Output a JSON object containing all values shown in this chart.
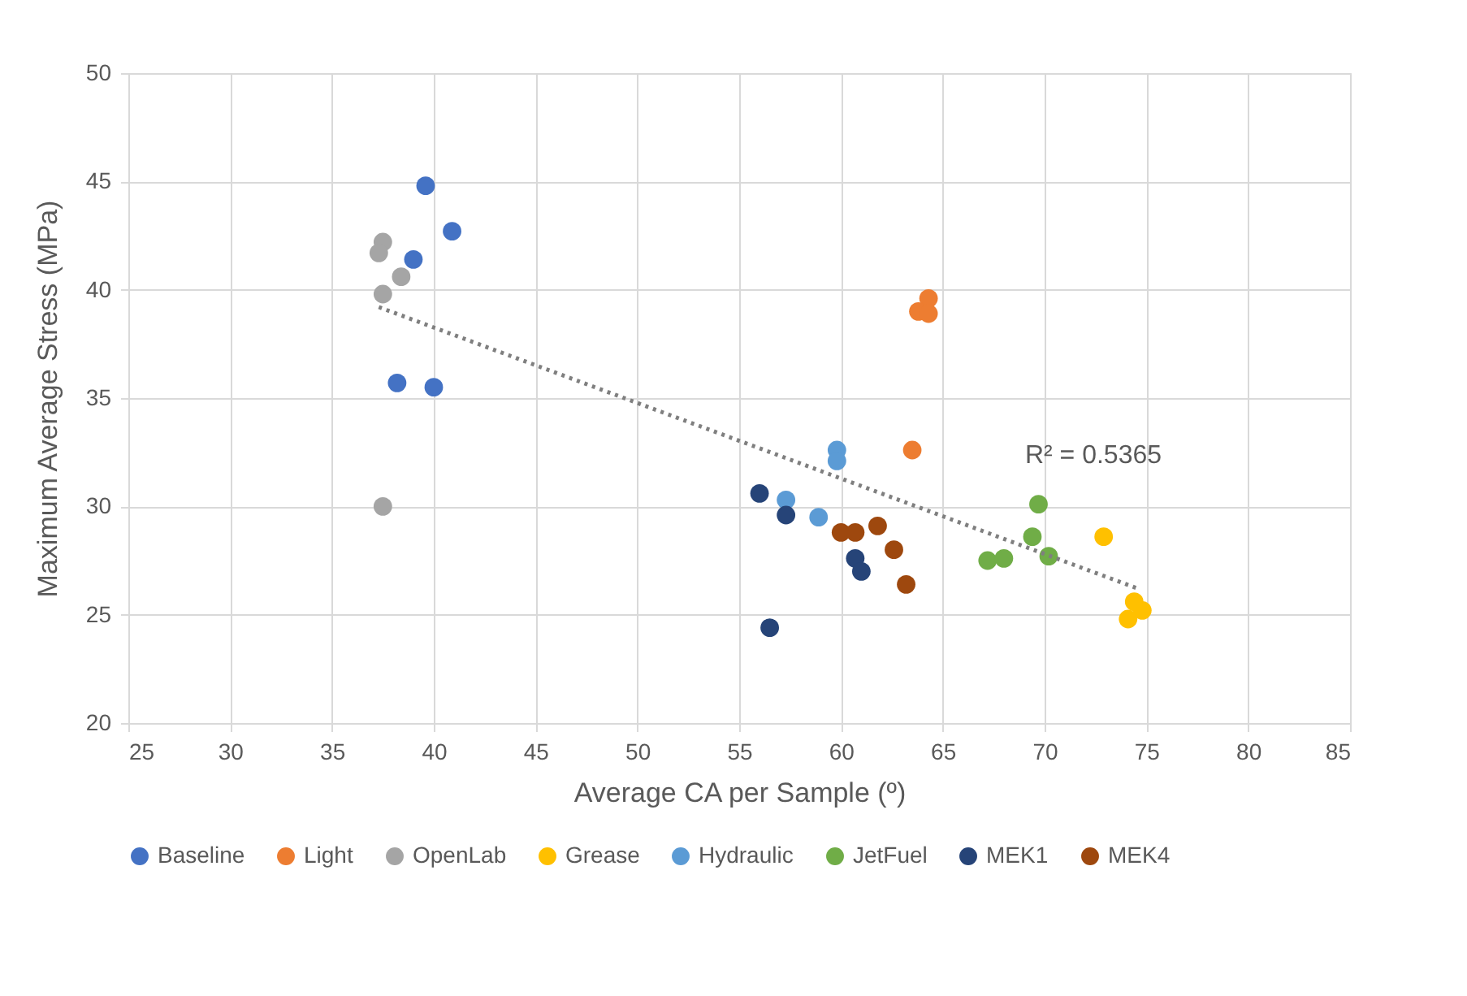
{
  "chart_data": {
    "type": "scatter",
    "xlabel": "Average CA per Sample (º)",
    "ylabel": "Maximum Average Stress (MPa)",
    "xlim": [
      25,
      85
    ],
    "xticks": [
      25,
      30,
      35,
      40,
      45,
      50,
      55,
      60,
      65,
      70,
      75,
      80,
      85
    ],
    "ylim": [
      20,
      50
    ],
    "yticks": [
      20,
      25,
      30,
      35,
      40,
      45,
      50
    ],
    "grid": true,
    "legend": "bottom",
    "marker": "circle",
    "series": [
      {
        "name": "Baseline",
        "color": "#4472c4",
        "x": [
          39.6,
          40.9,
          39.0,
          38.2,
          40.0
        ],
        "values": [
          44.8,
          42.7,
          41.4,
          35.7,
          35.5
        ]
      },
      {
        "name": "Light",
        "color": "#ed7d31",
        "x": [
          64.3,
          63.8,
          64.3,
          63.5
        ],
        "values": [
          39.6,
          39.0,
          38.9,
          32.6
        ]
      },
      {
        "name": "OpenLab",
        "color": "#a5a5a5",
        "x": [
          37.5,
          37.3,
          38.4,
          37.5,
          37.5
        ],
        "values": [
          42.2,
          41.7,
          40.6,
          39.8,
          30.0
        ]
      },
      {
        "name": "Grease",
        "color": "#ffc000",
        "x": [
          72.9,
          74.4,
          74.8,
          74.1
        ],
        "values": [
          28.6,
          25.6,
          25.2,
          24.8
        ]
      },
      {
        "name": "Hydraulic",
        "color": "#5b9bd5",
        "x": [
          59.8,
          59.8,
          57.3,
          58.9
        ],
        "values": [
          32.6,
          32.1,
          30.3,
          29.5
        ]
      },
      {
        "name": "JetFuel",
        "color": "#70ad47",
        "x": [
          69.7,
          69.4,
          70.2,
          67.2,
          68.0
        ],
        "values": [
          30.1,
          28.6,
          27.7,
          27.5,
          27.6
        ]
      },
      {
        "name": "MEK1",
        "color": "#264478",
        "x": [
          56.0,
          57.3,
          60.7,
          61.0,
          56.5
        ],
        "values": [
          30.6,
          29.6,
          27.6,
          27.0,
          24.4
        ]
      },
      {
        "name": "MEK4",
        "color": "#9e480e",
        "x": [
          60.0,
          60.7,
          61.8,
          62.6,
          63.2
        ],
        "values": [
          28.8,
          28.8,
          29.1,
          28.0,
          26.4
        ]
      },
      {
        "type": "line",
        "color": "#7f7f7f",
        "line_style": "dotted",
        "marker": "none",
        "x": [
          37.3,
          74.6
        ],
        "values": [
          39.2,
          26.2
        ]
      }
    ],
    "annotations": [
      "R² = 0.5365"
    ]
  }
}
